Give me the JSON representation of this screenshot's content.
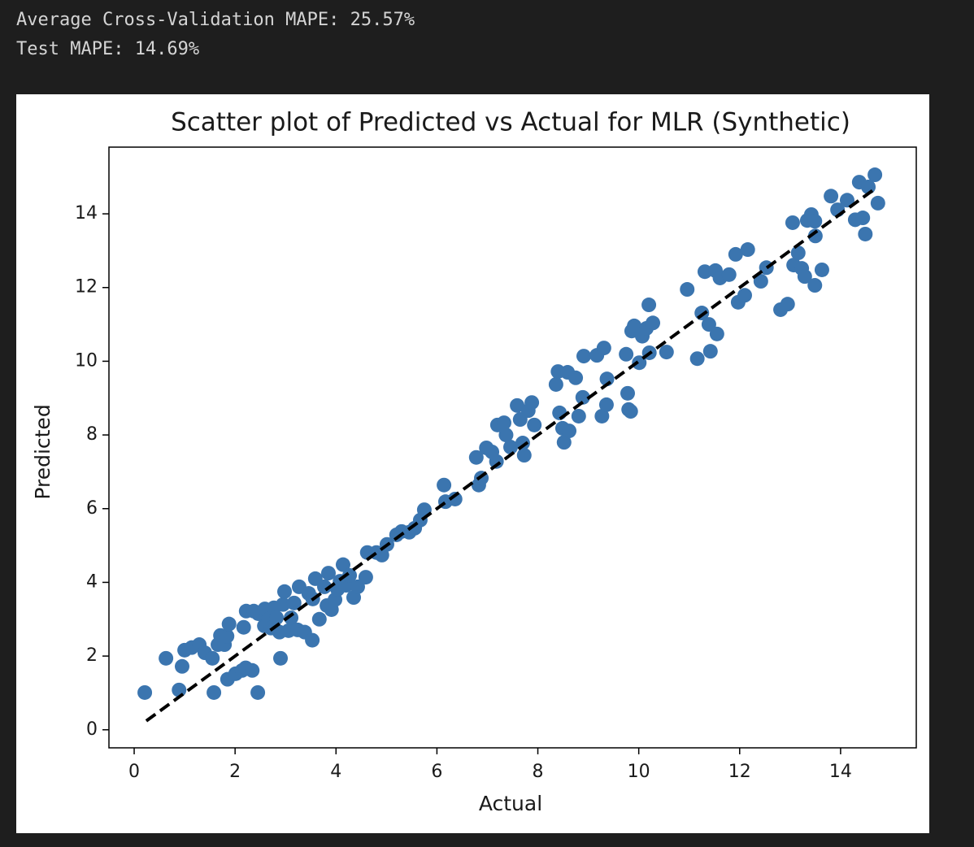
{
  "output_lines": [
    "Average Cross-Validation MAPE: 25.57%",
    "Test MAPE: 14.69%"
  ],
  "chart_data": {
    "type": "scatter",
    "title": "Scatter plot of Predicted vs Actual for MLR (Synthetic)",
    "x_label": "Actual",
    "y_label": "Predicted",
    "color": "#3b75af",
    "grid": false,
    "xlim": [
      -0.5,
      15.5
    ],
    "ylim": [
      -0.49,
      15.81
    ],
    "xticks": [
      0,
      2,
      4,
      6,
      8,
      10,
      12,
      14
    ],
    "yticks": [
      0,
      2,
      4,
      6,
      8,
      10,
      12,
      14
    ],
    "reference_line": {
      "color": "#000000",
      "x": [
        0.24,
        14.7
      ],
      "y": [
        0.24,
        14.7
      ]
    },
    "series": [
      {
        "name": "Predicted",
        "color": "#3b75af",
        "x": [
          0.21,
          0.63,
          0.89,
          0.95,
          1.0,
          1.14,
          1.29,
          1.4,
          1.55,
          1.58,
          1.66,
          1.71,
          1.79,
          1.84,
          1.88,
          1.85,
          2.01,
          2.14,
          2.21,
          2.34,
          2.45,
          2.17,
          2.22,
          2.37,
          2.46,
          2.59,
          2.58,
          2.66,
          2.71,
          2.77,
          2.82,
          2.88,
          2.9,
          2.95,
          2.98,
          3.06,
          3.11,
          3.17,
          3.24,
          3.27,
          3.38,
          3.46,
          3.53,
          3.54,
          3.59,
          3.67,
          3.77,
          3.82,
          3.85,
          3.91,
          3.98,
          4.03,
          4.08,
          4.14,
          4.2,
          4.27,
          4.35,
          4.43,
          4.59,
          4.62,
          4.8,
          4.91,
          5.01,
          5.2,
          5.3,
          5.45,
          5.56,
          5.67,
          5.75,
          6.14,
          6.17,
          6.36,
          6.78,
          6.83,
          6.88,
          6.98,
          7.09,
          7.18,
          7.2,
          7.33,
          7.37,
          7.46,
          7.59,
          7.65,
          7.7,
          7.73,
          7.81,
          7.88,
          7.93,
          8.36,
          8.4,
          8.43,
          8.49,
          8.59,
          8.52,
          8.62,
          8.75,
          8.81,
          8.89,
          8.91,
          9.17,
          9.27,
          9.31,
          9.36,
          9.37,
          9.75,
          9.78,
          9.8,
          9.84,
          9.86,
          9.91,
          10.01,
          10.07,
          10.15,
          10.2,
          10.21,
          10.28,
          10.55,
          10.96,
          11.16,
          11.25,
          11.31,
          11.39,
          11.42,
          11.52,
          11.55,
          11.61,
          11.79,
          11.92,
          11.97,
          12.1,
          12.16,
          12.42,
          12.53,
          12.81,
          12.95,
          13.05,
          13.07,
          13.16,
          13.23,
          13.29,
          13.34,
          13.42,
          13.5,
          13.49,
          13.49,
          13.63,
          13.81,
          13.94,
          14.13,
          14.29,
          14.37,
          14.44,
          14.49,
          14.55,
          14.68,
          14.74
        ],
        "values": [
          1.01,
          1.94,
          1.08,
          1.72,
          2.16,
          2.23,
          2.31,
          2.09,
          1.94,
          1.01,
          2.31,
          2.56,
          2.31,
          2.54,
          2.87,
          1.37,
          1.52,
          1.61,
          1.68,
          1.61,
          1.01,
          2.78,
          3.22,
          3.22,
          3.15,
          3.28,
          2.82,
          3.0,
          2.76,
          3.31,
          3.04,
          2.65,
          1.94,
          3.4,
          3.75,
          2.69,
          3.04,
          3.44,
          2.71,
          3.88,
          2.65,
          3.7,
          2.43,
          3.55,
          4.1,
          3.0,
          3.88,
          3.37,
          4.25,
          3.26,
          3.53,
          3.81,
          4.03,
          4.48,
          3.92,
          4.19,
          3.59,
          3.88,
          4.14,
          4.81,
          4.81,
          4.74,
          5.03,
          5.29,
          5.38,
          5.36,
          5.47,
          5.69,
          5.97,
          6.64,
          6.19,
          6.26,
          7.39,
          6.64,
          6.83,
          7.65,
          7.54,
          7.28,
          8.27,
          8.33,
          8.0,
          7.67,
          8.8,
          8.42,
          7.78,
          7.45,
          8.66,
          8.88,
          8.27,
          9.37,
          9.72,
          8.6,
          8.18,
          9.7,
          7.8,
          8.11,
          9.55,
          8.51,
          9.02,
          10.14,
          10.16,
          8.51,
          10.36,
          8.82,
          9.52,
          10.19,
          9.13,
          8.69,
          8.64,
          10.82,
          10.96,
          9.96,
          10.68,
          10.89,
          11.53,
          10.23,
          11.04,
          10.25,
          11.95,
          10.07,
          11.31,
          12.43,
          11.0,
          10.27,
          12.46,
          10.74,
          12.26,
          12.35,
          12.9,
          11.6,
          11.79,
          13.03,
          12.17,
          12.54,
          11.4,
          11.55,
          13.76,
          12.61,
          12.94,
          12.52,
          12.3,
          13.82,
          13.98,
          13.4,
          13.8,
          12.06,
          12.48,
          14.48,
          14.11,
          14.37,
          13.84,
          14.86,
          13.89,
          13.45,
          14.73,
          15.06,
          14.29
        ]
      }
    ]
  }
}
